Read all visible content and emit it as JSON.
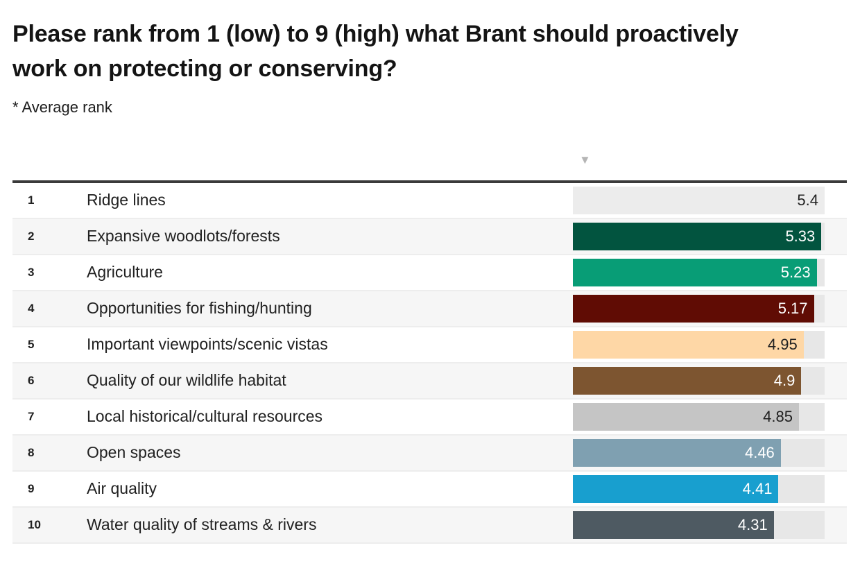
{
  "title": "Please rank from 1 (low) to 9 (high) what Brant should proactively work on protecting or conserving?",
  "subtitle": "* Average rank",
  "sort_indicator_glyph": "▼",
  "colors": {
    "page_background": "#ffffff",
    "header_rule": "#3a3a3a",
    "row_alt_background": "#f6f6f6",
    "row_border": "#ededed",
    "bar_track": "#e7e7e7",
    "sort_indicator": "#b5b5b5",
    "text": "#212121"
  },
  "chart_data": {
    "type": "bar",
    "orientation": "horizontal",
    "title": "Please rank from 1 (low) to 9 (high) what Brant should proactively work on protecting or conserving?",
    "note": "* Average rank",
    "value_axis_range": [
      0,
      5.4
    ],
    "max_value": 5.4,
    "sort": "descending by average rank",
    "categories": [
      "Ridge lines",
      "Expansive woodlots/forests",
      "Agriculture",
      "Opportunities for fishing/hunting",
      "Important viewpoints/scenic vistas",
      "Quality of our wildlife habitat",
      "Local historical/cultural resources",
      "Open spaces",
      "Air quality",
      "Water quality of streams & rivers"
    ],
    "values": [
      5.4,
      5.33,
      5.23,
      5.17,
      4.95,
      4.9,
      4.85,
      4.46,
      4.41,
      4.31
    ],
    "rows": [
      {
        "rank": "1",
        "label": "Ridge lines",
        "value": 5.4,
        "display": "5.4",
        "bar_color": "#ececec",
        "value_color": "#212121"
      },
      {
        "rank": "2",
        "label": "Expansive woodlots/forests",
        "value": 5.33,
        "display": "5.33",
        "bar_color": "#02543f",
        "value_color": "#ffffff"
      },
      {
        "rank": "3",
        "label": "Agriculture",
        "value": 5.23,
        "display": "5.23",
        "bar_color": "#089d76",
        "value_color": "#ffffff"
      },
      {
        "rank": "4",
        "label": "Opportunities for fishing/hunting",
        "value": 5.17,
        "display": "5.17",
        "bar_color": "#600c04",
        "value_color": "#ffffff"
      },
      {
        "rank": "5",
        "label": "Important viewpoints/scenic vistas",
        "value": 4.95,
        "display": "4.95",
        "bar_color": "#fed7a6",
        "value_color": "#212121"
      },
      {
        "rank": "6",
        "label": "Quality of our wildlife habitat",
        "value": 4.9,
        "display": "4.9",
        "bar_color": "#7d5530",
        "value_color": "#ffffff"
      },
      {
        "rank": "7",
        "label": "Local historical/cultural resources",
        "value": 4.85,
        "display": "4.85",
        "bar_color": "#c5c5c5",
        "value_color": "#212121"
      },
      {
        "rank": "8",
        "label": "Open spaces",
        "value": 4.46,
        "display": "4.46",
        "bar_color": "#7fa0b1",
        "value_color": "#ffffff"
      },
      {
        "rank": "9",
        "label": "Air quality",
        "value": 4.41,
        "display": "4.41",
        "bar_color": "#189fcf",
        "value_color": "#ffffff"
      },
      {
        "rank": "10",
        "label": "Water quality of streams & rivers",
        "value": 4.31,
        "display": "4.31",
        "bar_color": "#4e5a62",
        "value_color": "#ffffff"
      }
    ]
  }
}
